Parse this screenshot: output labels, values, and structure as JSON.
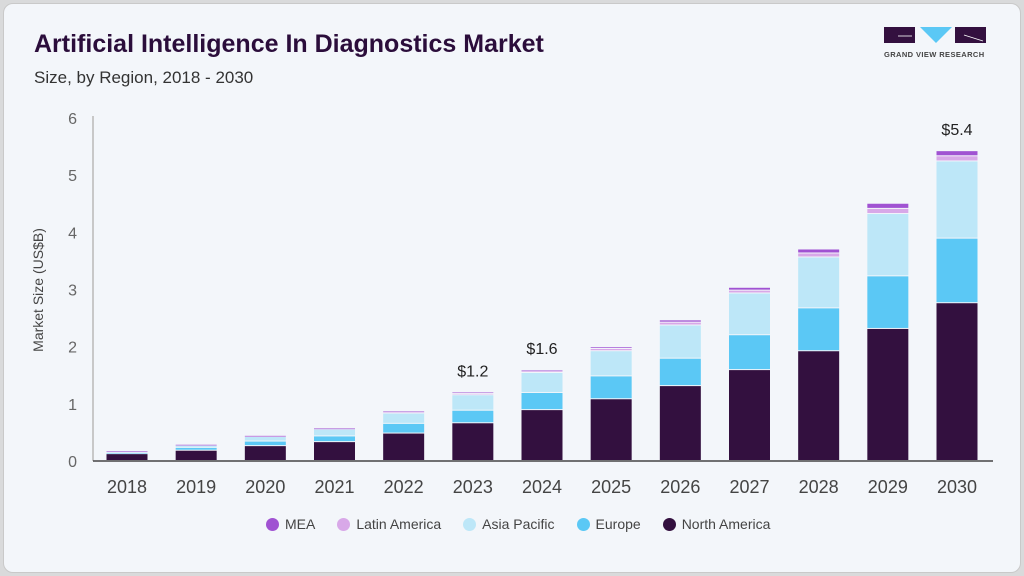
{
  "header": {
    "title": "Artificial Intelligence In Diagnostics Market",
    "subtitle": "Size, by Region, 2018 - 2030",
    "logo_text": "GRAND VIEW RESEARCH"
  },
  "chart_data": {
    "type": "bar",
    "stacked": true,
    "title": "Artificial Intelligence In Diagnostics Market",
    "subtitle": "Size, by Region, 2018 - 2030",
    "xlabel": "",
    "ylabel": "Market Size (US$B)",
    "ylim": [
      0,
      6
    ],
    "yticks": [
      0,
      1,
      2,
      3,
      4,
      5,
      6
    ],
    "grid": false,
    "legend_position": "bottom",
    "categories": [
      "2018",
      "2019",
      "2020",
      "2021",
      "2022",
      "2023",
      "2024",
      "2025",
      "2026",
      "2027",
      "2028",
      "2029",
      "2030"
    ],
    "series": [
      {
        "name": "North America",
        "color": "#33103f",
        "values": [
          0.12,
          0.18,
          0.26,
          0.33,
          0.48,
          0.66,
          0.89,
          1.08,
          1.31,
          1.59,
          1.92,
          2.31,
          2.76
        ]
      },
      {
        "name": "Europe",
        "color": "#5bc8f5",
        "values": [
          0.02,
          0.05,
          0.08,
          0.1,
          0.17,
          0.22,
          0.3,
          0.4,
          0.48,
          0.61,
          0.75,
          0.92,
          1.13
        ]
      },
      {
        "name": "Asia Pacific",
        "color": "#bde7f8",
        "values": [
          0.02,
          0.04,
          0.08,
          0.12,
          0.18,
          0.27,
          0.35,
          0.44,
          0.58,
          0.73,
          0.89,
          1.09,
          1.35
        ]
      },
      {
        "name": "Latin America",
        "color": "#d8a8e8",
        "values": [
          0.005,
          0.007,
          0.01,
          0.012,
          0.018,
          0.025,
          0.03,
          0.04,
          0.05,
          0.05,
          0.07,
          0.09,
          0.09
        ]
      },
      {
        "name": "MEA",
        "color": "#a052d2",
        "values": [
          0.005,
          0.007,
          0.01,
          0.012,
          0.018,
          0.025,
          0.02,
          0.03,
          0.04,
          0.05,
          0.07,
          0.09,
          0.09
        ]
      }
    ],
    "legend_order": [
      "MEA",
      "Latin America",
      "Asia Pacific",
      "Europe",
      "North America"
    ],
    "annotations": [
      {
        "category": "2023",
        "text": "$1.2"
      },
      {
        "category": "2024",
        "text": "$1.6"
      },
      {
        "category": "2030",
        "text": "$5.4"
      }
    ]
  }
}
